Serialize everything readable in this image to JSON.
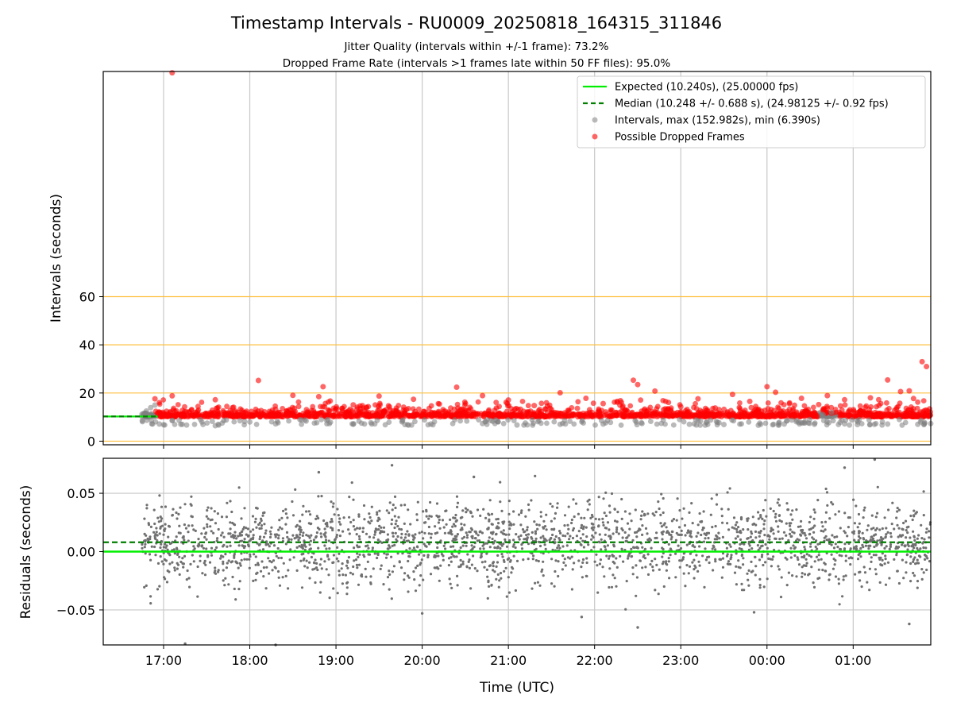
{
  "title": "Timestamp Intervals - RU0009_20250818_164315_311846",
  "subtitle_1": "Jitter Quality (intervals within +/-1 frame): 73.2%",
  "subtitle_2": "Dropped Frame Rate (intervals >1 frames late within 50 FF files): 95.0%",
  "colors": {
    "expected": "#00ee00",
    "median": "#007f00",
    "intervals": "#808080",
    "dropped": "#ff0000",
    "reference_lines": "#ffc040",
    "grid": "#c8c8c8"
  },
  "chart_data": [
    {
      "type": "scatter",
      "panel": "top",
      "ylabel": "Intervals (seconds)",
      "xlabel": "",
      "x_range_hours_utc": [
        16.3,
        25.9
      ],
      "ylim": [
        -1.5,
        153.5
      ],
      "yticks": [
        0,
        20,
        40,
        60
      ],
      "reference_lines_y": [
        0,
        20,
        40,
        60
      ],
      "grid": "vertical",
      "legend_position": "top-right",
      "expected_interval": 10.24,
      "median_interval": 10.248,
      "legend": [
        {
          "key": "expected",
          "label": "Expected (10.240s), (25.00000 fps)"
        },
        {
          "key": "median",
          "label": "Median (10.248 +/- 0.688 s), (24.98125 +/- 0.92 fps)"
        },
        {
          "key": "intervals",
          "label": "Intervals, max (152.982s), min (6.390s)"
        },
        {
          "key": "dropped",
          "label": "Possible Dropped Frames"
        }
      ],
      "series": [
        {
          "name": "Possible Dropped Frames",
          "points": [
            [
              17.1,
              152.98
            ],
            [
              18.1,
              25.2
            ],
            [
              18.85,
              22.6
            ],
            [
              20.4,
              22.4
            ],
            [
              22.45,
              25.3
            ],
            [
              22.5,
              23.5
            ],
            [
              25.4,
              25.4
            ],
            [
              25.8,
              33.0
            ],
            [
              25.85,
              31.0
            ],
            [
              21.6,
              20.1
            ],
            [
              22.7,
              20.8
            ],
            [
              24.0,
              22.6
            ],
            [
              24.1,
              20.3
            ],
            [
              23.6,
              19.4
            ],
            [
              25.55,
              20.6
            ],
            [
              25.65,
              20.9
            ],
            [
              18.5,
              19.0
            ],
            [
              19.5,
              18.7
            ],
            [
              20.7,
              18.9
            ],
            [
              23.2,
              17.6
            ],
            [
              16.9,
              17.6
            ],
            [
              17.1,
              18.8
            ],
            [
              17.6,
              17.2
            ],
            [
              18.8,
              18.5
            ],
            [
              19.9,
              17.4
            ],
            [
              21.0,
              17.1
            ],
            [
              21.9,
              17.8
            ],
            [
              22.3,
              16.8
            ],
            [
              23.8,
              16.5
            ],
            [
              24.4,
              17.8
            ],
            [
              24.7,
              18.9
            ],
            [
              24.9,
              17.2
            ],
            [
              25.2,
              18.0
            ],
            [
              25.7,
              17.7
            ],
            [
              17.4,
              14.4
            ],
            [
              19.2,
              15.1
            ],
            [
              20.2,
              15.4
            ],
            [
              21.3,
              14.8
            ],
            [
              22.1,
              15.6
            ],
            [
              23.0,
              14.3
            ],
            [
              24.6,
              15.2
            ],
            [
              25.3,
              14.9
            ],
            [
              17.8,
              13.9
            ],
            [
              19.7,
              13.7
            ],
            [
              21.8,
              13.6
            ],
            [
              23.4,
              13.8
            ],
            [
              18.3,
              13.2
            ],
            [
              20.5,
              12.9
            ],
            [
              22.8,
              13.1
            ],
            [
              24.3,
              12.7
            ],
            [
              25.5,
              13.3
            ]
          ]
        },
        {
          "name": "Intervals, max (152.982s), min (6.390s)",
          "points": [
            [
              16.75,
              11.2
            ],
            [
              16.8,
              12.5
            ],
            [
              16.85,
              13.9
            ],
            [
              16.9,
              15.0
            ],
            [
              16.95,
              7.1
            ],
            [
              17.0,
              6.8
            ],
            [
              17.2,
              7.0
            ],
            [
              17.6,
              6.4
            ],
            [
              18.3,
              7.2
            ],
            [
              18.75,
              7.5
            ],
            [
              19.2,
              7.0
            ],
            [
              19.45,
              7.2
            ],
            [
              19.8,
              6.9
            ],
            [
              20.1,
              7.1
            ],
            [
              20.7,
              7.3
            ],
            [
              21.1,
              6.7
            ],
            [
              21.6,
              7.0
            ],
            [
              22.1,
              7.1
            ],
            [
              22.55,
              7.3
            ],
            [
              23.1,
              7.0
            ],
            [
              23.5,
              6.9
            ],
            [
              23.9,
              6.6
            ],
            [
              24.2,
              7.1
            ],
            [
              24.55,
              7.0
            ],
            [
              24.9,
              7.2
            ],
            [
              25.05,
              6.9
            ],
            [
              25.4,
              7.1
            ],
            [
              25.75,
              7.0
            ],
            [
              25.9,
              7.3
            ],
            [
              24.65,
              11.0
            ],
            [
              24.75,
              12.0
            ]
          ]
        }
      ]
    },
    {
      "type": "scatter",
      "panel": "bottom",
      "xlabel": "Time (UTC)",
      "ylabel": "Residuals (seconds)",
      "x_range_hours_utc": [
        16.3,
        25.9
      ],
      "ylim": [
        -0.08,
        0.08
      ],
      "yticks": [
        0.05,
        0.0,
        -0.05
      ],
      "ytick_labels": [
        "0.05",
        "0.00",
        "−0.05"
      ],
      "grid": "both",
      "expected_residual": 0.0,
      "median_residual": 0.008,
      "data_span_hours_utc": [
        16.75,
        25.9
      ],
      "residual_sd": 0.018,
      "xticks": [
        17,
        18,
        19,
        20,
        21,
        22,
        23,
        24,
        25
      ],
      "xtick_labels": [
        "17:00",
        "18:00",
        "19:00",
        "20:00",
        "21:00",
        "22:00",
        "23:00",
        "00:00",
        "01:00"
      ],
      "series": [
        {
          "name": "Residuals",
          "points": [
            [
              17.25,
              -0.079
            ],
            [
              18.3,
              -0.08
            ],
            [
              20.0,
              -0.053
            ],
            [
              22.5,
              -0.065
            ],
            [
              25.65,
              -0.062
            ],
            [
              19.65,
              0.074
            ],
            [
              25.25,
              0.079
            ],
            [
              18.8,
              0.068
            ],
            [
              23.85,
              -0.052
            ],
            [
              21.85,
              -0.056
            ],
            [
              24.9,
              0.072
            ],
            [
              20.6,
              0.064
            ]
          ]
        }
      ]
    }
  ]
}
